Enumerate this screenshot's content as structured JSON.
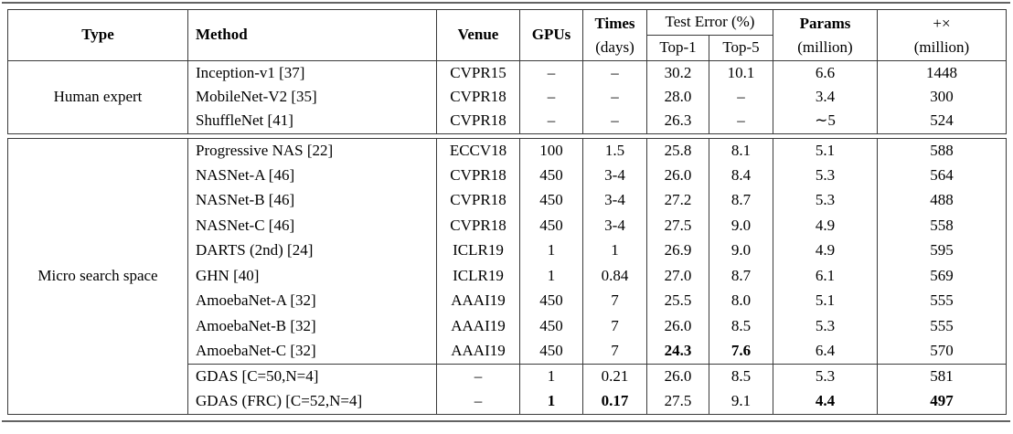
{
  "table": {
    "headers": {
      "type": "Type",
      "method": "Method",
      "venue": "Venue",
      "gpus": "GPUs",
      "times_line1": "Times",
      "times_line2": "(days)",
      "test_error": "Test Error (%)",
      "top1": "Top-1",
      "top5": "Top-5",
      "params_line1": "Params",
      "params_line2": "(million)",
      "madds_line1": "+×",
      "madds_line2": "(million)"
    },
    "sections": [
      {
        "type_label": "Human expert",
        "rows": [
          {
            "method": "Inception-v1 [37]",
            "venue": "CVPR15",
            "gpus": "–",
            "times": "–",
            "top1": "30.2",
            "top5": "10.1",
            "params": "6.6",
            "madds": "1448"
          },
          {
            "method": "MobileNet-V2 [35]",
            "venue": "CVPR18",
            "gpus": "–",
            "times": "–",
            "top1": "28.0",
            "top5": "–",
            "params": "3.4",
            "madds": "300"
          },
          {
            "method": "ShuffleNet [41]",
            "venue": "CVPR18",
            "gpus": "–",
            "times": "–",
            "top1": "26.3",
            "top5": "–",
            "params": "∼5",
            "madds": "524"
          }
        ]
      },
      {
        "type_label": "Micro search space",
        "rows": [
          {
            "method": "Progressive NAS [22]",
            "venue": "ECCV18",
            "gpus": "100",
            "times": "1.5",
            "top1": "25.8",
            "top5": "8.1",
            "params": "5.1",
            "madds": "588"
          },
          {
            "method": "NASNet-A [46]",
            "venue": "CVPR18",
            "gpus": "450",
            "times": "3-4",
            "top1": "26.0",
            "top5": "8.4",
            "params": "5.3",
            "madds": "564"
          },
          {
            "method": "NASNet-B [46]",
            "venue": "CVPR18",
            "gpus": "450",
            "times": "3-4",
            "top1": "27.2",
            "top5": "8.7",
            "params": "5.3",
            "madds": "488"
          },
          {
            "method": "NASNet-C [46]",
            "venue": "CVPR18",
            "gpus": "450",
            "times": "3-4",
            "top1": "27.5",
            "top5": "9.0",
            "params": "4.9",
            "madds": "558"
          },
          {
            "method": "DARTS (2nd) [24]",
            "venue": "ICLR19",
            "gpus": "1",
            "times": "1",
            "top1": "26.9",
            "top5": "9.0",
            "params": "4.9",
            "madds": "595"
          },
          {
            "method": "GHN [40]",
            "venue": "ICLR19",
            "gpus": "1",
            "times": "0.84",
            "top1": "27.0",
            "top5": "8.7",
            "params": "6.1",
            "madds": "569"
          },
          {
            "method": "AmoebaNet-A [32]",
            "venue": "AAAI19",
            "gpus": "450",
            "times": "7",
            "top1": "25.5",
            "top5": "8.0",
            "params": "5.1",
            "madds": "555"
          },
          {
            "method": "AmoebaNet-B [32]",
            "venue": "AAAI19",
            "gpus": "450",
            "times": "7",
            "top1": "26.0",
            "top5": "8.5",
            "params": "5.3",
            "madds": "555"
          },
          {
            "method": "AmoebaNet-C [32]",
            "venue": "AAAI19",
            "gpus": "450",
            "times": "7",
            "top1": "24.3",
            "top5": "7.6",
            "params": "6.4",
            "madds": "570",
            "bold": [
              "top1",
              "top5"
            ]
          },
          {
            "method": "GDAS [C=50,N=4]",
            "venue": "–",
            "gpus": "1",
            "times": "0.21",
            "top1": "26.0",
            "top5": "8.5",
            "params": "5.3",
            "madds": "581",
            "cline": true
          },
          {
            "method": "GDAS (FRC) [C=52,N=4]",
            "venue": "–",
            "gpus": "1",
            "times": "0.17",
            "top1": "27.5",
            "top5": "9.1",
            "params": "4.4",
            "madds": "497",
            "bold": [
              "gpus",
              "times",
              "params",
              "madds"
            ]
          }
        ]
      }
    ]
  }
}
